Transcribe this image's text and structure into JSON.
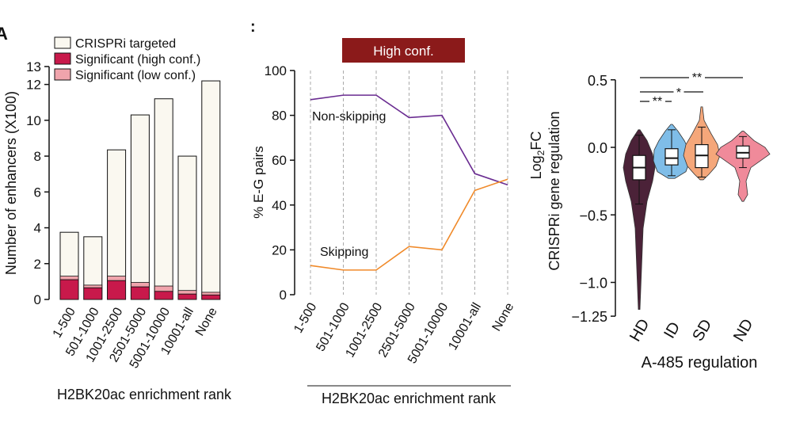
{
  "panel_labels": {
    "a": "A",
    "b": ":"
  },
  "chart_data": [
    {
      "id": "stacked_bar",
      "type": "bar",
      "stacked": true,
      "ylabel": "Number of enhancers (X100)",
      "xlabel": "H2BK20ac enrichment rank",
      "ylim": [
        0,
        13
      ],
      "yticks": [
        0,
        2,
        4,
        6,
        8,
        10,
        12,
        13
      ],
      "categories": [
        "1-500",
        "501-1000",
        "1001-2500",
        "2501-5000",
        "5001-10000",
        "10001-all",
        "None"
      ],
      "series": [
        {
          "name": "CRISPRi targeted",
          "color": "#faf8f0",
          "values": [
            3.75,
            3.5,
            8.35,
            10.3,
            11.2,
            8.0,
            12.2
          ]
        },
        {
          "name": "Significant (high conf.)",
          "color": "#c8194b",
          "values": [
            1.1,
            0.65,
            1.05,
            0.7,
            0.45,
            0.3,
            0.25
          ]
        },
        {
          "name": "Significant (low conf.)",
          "color": "#f0a4ac",
          "values": [
            0.2,
            0.15,
            0.25,
            0.25,
            0.3,
            0.2,
            0.15
          ]
        }
      ],
      "legend": "top"
    },
    {
      "id": "line_chart",
      "type": "line",
      "banner": "High conf.",
      "banner_color": "#8b1a1a",
      "ylabel": "% E-G pairs",
      "xlabel": "H2BK20ac enrichment rank",
      "ylim": [
        0,
        100
      ],
      "yticks": [
        0,
        20,
        40,
        60,
        80,
        100
      ],
      "categories": [
        "1-500",
        "501-1000",
        "1001-2500",
        "2501-5000",
        "5001-10000",
        "10001-all",
        "None"
      ],
      "series": [
        {
          "name": "Non-skipping",
          "color": "#6a2c91",
          "values": [
            87,
            89,
            89,
            79,
            80,
            54,
            49
          ]
        },
        {
          "name": "Skipping",
          "color": "#f08a2a",
          "values": [
            13,
            11,
            11,
            21.5,
            20,
            46.5,
            51.5
          ]
        }
      ]
    },
    {
      "id": "violin_plot",
      "type": "violin",
      "ylabel_line1": "Log",
      "ylabel_sub": "2",
      "ylabel_line1b": "FC",
      "ylabel_line2": "CRISPRi gene regulation",
      "xlabel": "A-485 regulation",
      "ylim": [
        -1.25,
        0.5
      ],
      "ytick_labels": [
        "0.5",
        "0.0",
        "−0.5",
        "−1.0",
        "−1.25"
      ],
      "ytick_values": [
        0.5,
        0.0,
        -0.5,
        -1.0,
        -1.25
      ],
      "groups": [
        {
          "name": "HD",
          "color": "#4b2238",
          "min": -1.2,
          "q1": -0.24,
          "median": -0.15,
          "q3": -0.06,
          "max": 0.13,
          "whisker_lo": -0.42,
          "whisker_hi": 0.09
        },
        {
          "name": "ID",
          "color": "#7fbde8",
          "min": -0.23,
          "q1": -0.13,
          "median": -0.08,
          "q3": -0.01,
          "max": 0.17,
          "whisker_lo": -0.21,
          "whisker_hi": 0.13
        },
        {
          "name": "SD",
          "color": "#f5a77a",
          "min": -0.24,
          "q1": -0.15,
          "median": -0.06,
          "q3": 0.02,
          "max": 0.3,
          "whisker_lo": -0.22,
          "whisker_hi": 0.15
        },
        {
          "name": "ND",
          "color": "#f08a9a",
          "min": -0.4,
          "q1": -0.08,
          "median": -0.04,
          "q3": 0.01,
          "max": 0.12,
          "whisker_lo": -0.15,
          "whisker_hi": 0.08
        }
      ],
      "significance": [
        {
          "from": "HD",
          "to": "ND",
          "label": "**"
        },
        {
          "from": "HD",
          "to": "SD",
          "label": "*"
        },
        {
          "from": "HD",
          "to": "ID",
          "label": "**"
        }
      ]
    }
  ]
}
